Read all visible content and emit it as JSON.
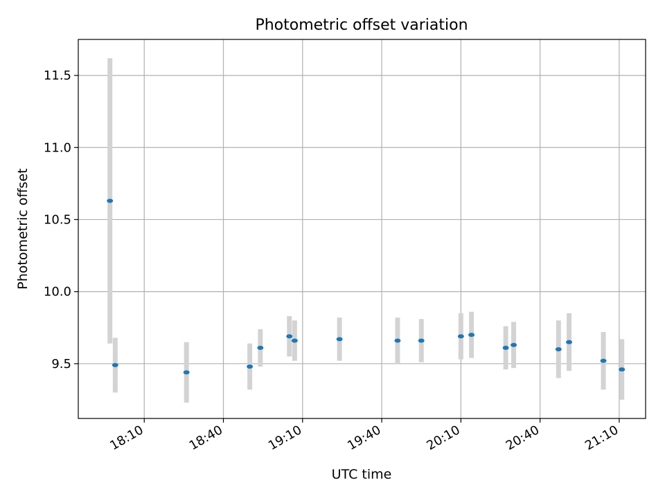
{
  "chart_data": {
    "type": "scatter",
    "title": "Photometric offset variation",
    "xlabel": "UTC time",
    "ylabel": "Photometric offset",
    "x_ticks": [
      "18:10",
      "18:40",
      "19:10",
      "19:40",
      "20:10",
      "20:40",
      "21:10"
    ],
    "y_ticks": [
      9.5,
      10.0,
      10.5,
      11.0,
      11.5
    ],
    "xlim": [
      "17:45",
      "21:20"
    ],
    "ylim": [
      9.12,
      11.75
    ],
    "grid": true,
    "series": [
      {
        "points": [
          {
            "x": "17:57",
            "y": 10.63,
            "err": 0.99
          },
          {
            "x": "17:59",
            "y": 9.49,
            "err": 0.19
          },
          {
            "x": "18:26",
            "y": 9.44,
            "err": 0.21
          },
          {
            "x": "18:50",
            "y": 9.48,
            "err": 0.16
          },
          {
            "x": "18:54",
            "y": 9.61,
            "err": 0.13
          },
          {
            "x": "19:05",
            "y": 9.69,
            "err": 0.14
          },
          {
            "x": "19:07",
            "y": 9.66,
            "err": 0.14
          },
          {
            "x": "19:24",
            "y": 9.67,
            "err": 0.15
          },
          {
            "x": "19:46",
            "y": 9.66,
            "err": 0.16
          },
          {
            "x": "19:55",
            "y": 9.66,
            "err": 0.15
          },
          {
            "x": "20:10",
            "y": 9.69,
            "err": 0.16
          },
          {
            "x": "20:14",
            "y": 9.7,
            "err": 0.16
          },
          {
            "x": "20:27",
            "y": 9.61,
            "err": 0.15
          },
          {
            "x": "20:30",
            "y": 9.63,
            "err": 0.16
          },
          {
            "x": "20:47",
            "y": 9.6,
            "err": 0.2
          },
          {
            "x": "20:51",
            "y": 9.65,
            "err": 0.2
          },
          {
            "x": "21:04",
            "y": 9.52,
            "err": 0.2
          },
          {
            "x": "21:11",
            "y": 9.46,
            "err": 0.21
          }
        ]
      }
    ],
    "colors": {
      "marker": "#1f77b4",
      "errorbar": "#d3d3d3",
      "grid": "#b0b0b0"
    }
  }
}
